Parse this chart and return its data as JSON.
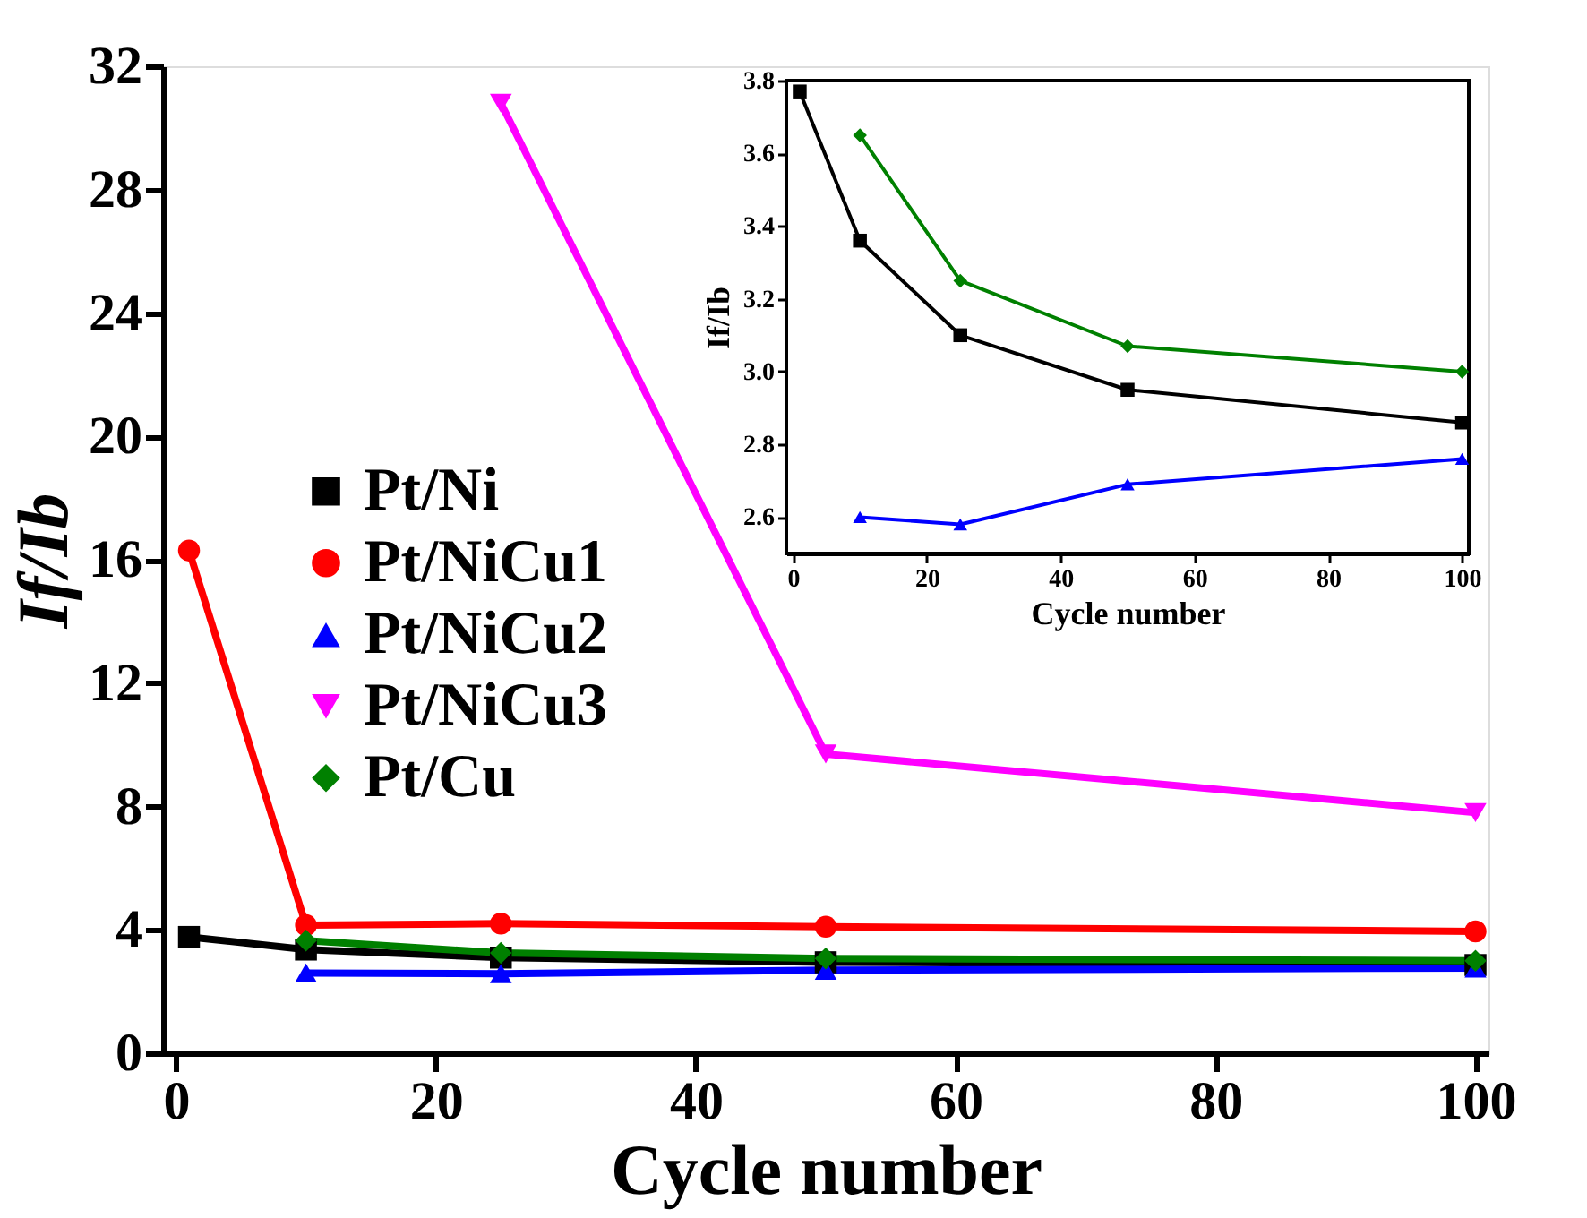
{
  "chart_data": [
    {
      "type": "line",
      "xlabel": "Cycle number",
      "ylabel": "If/Ib",
      "xlim": [
        -1,
        101
      ],
      "ylim": [
        0,
        32
      ],
      "xticks": [
        0,
        20,
        40,
        60,
        80,
        100
      ],
      "yticks": [
        0,
        4,
        8,
        12,
        16,
        20,
        24,
        28,
        32
      ],
      "grid": false,
      "legend": "left",
      "series": [
        {
          "name": "Pt/Ni",
          "color": "#000000",
          "marker": "square",
          "x": [
            1,
            10,
            25,
            50,
            100
          ],
          "values": [
            3.77,
            3.36,
            3.1,
            2.95,
            2.86
          ]
        },
        {
          "name": "Pt/NiCu1",
          "color": "#ff0000",
          "marker": "circle",
          "x": [
            1,
            10,
            25,
            50,
            100
          ],
          "values": [
            16.3,
            4.15,
            4.2,
            4.1,
            3.95
          ]
        },
        {
          "name": "Pt/NiCu2",
          "color": "#0000ff",
          "marker": "triangle",
          "x": [
            10,
            25,
            50,
            100
          ],
          "values": [
            2.6,
            2.58,
            2.69,
            2.76
          ]
        },
        {
          "name": "Pt/NiCu3",
          "color": "#ff00ff",
          "marker": "triangle-down",
          "x": [
            25,
            50,
            100
          ],
          "values": [
            30.8,
            9.7,
            7.8
          ]
        },
        {
          "name": "Pt/Cu",
          "color": "#008000",
          "marker": "diamond",
          "x": [
            10,
            25,
            50,
            100
          ],
          "values": [
            3.65,
            3.25,
            3.07,
            3.0
          ]
        }
      ]
    },
    {
      "type": "line",
      "xlabel": "Cycle number",
      "ylabel": "If/Ib",
      "xlim": [
        -1,
        101
      ],
      "ylim": [
        2.5,
        3.8
      ],
      "xticks": [
        0,
        20,
        40,
        60,
        80,
        100
      ],
      "yticks": [
        {
          "value": 2.6,
          "label": "2.6"
        },
        {
          "value": 2.8,
          "label": "2.8"
        },
        {
          "value": 3.0,
          "label": "3.0"
        },
        {
          "value": 3.2,
          "label": "3.2"
        },
        {
          "value": 3.4,
          "label": "3.4"
        },
        {
          "value": 3.6,
          "label": "3.6"
        },
        {
          "value": 3.8,
          "label": "3.8"
        }
      ],
      "grid": false,
      "series": [
        {
          "color": "#000000",
          "marker": "square",
          "x": [
            1,
            10,
            25,
            50,
            100
          ],
          "values": [
            3.77,
            3.36,
            3.1,
            2.95,
            2.86
          ]
        },
        {
          "color": "#0000ff",
          "marker": "triangle",
          "x": [
            10,
            25,
            50,
            100
          ],
          "values": [
            2.6,
            2.58,
            2.69,
            2.76
          ]
        },
        {
          "color": "#008000",
          "marker": "diamond",
          "x": [
            10,
            25,
            50,
            100
          ],
          "values": [
            3.65,
            3.25,
            3.07,
            3.0
          ]
        }
      ]
    }
  ]
}
